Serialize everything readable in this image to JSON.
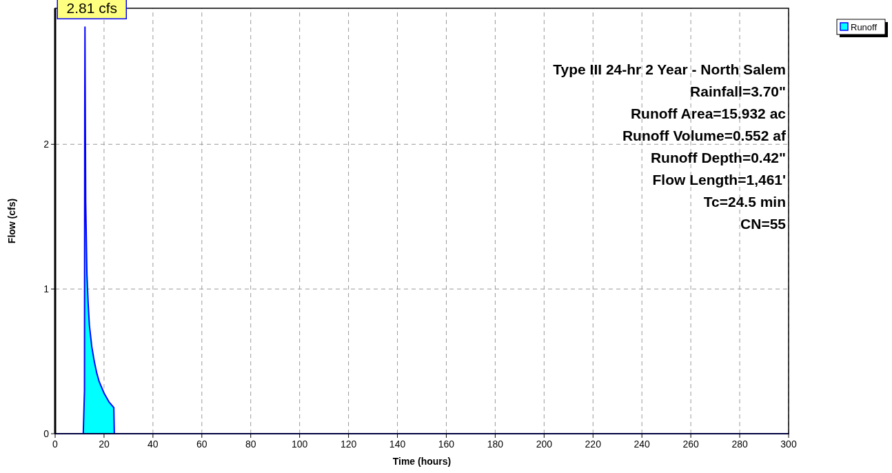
{
  "chart_data": {
    "type": "area",
    "xlabel": "Time  (hours)",
    "ylabel": "Flow  (cfs)",
    "xlim": [
      0,
      300
    ],
    "xticks": [
      0,
      20,
      40,
      60,
      80,
      100,
      120,
      140,
      160,
      180,
      200,
      220,
      240,
      260,
      280,
      300
    ],
    "ylim": [
      0,
      2.94
    ],
    "yticks": [
      0,
      1,
      2
    ],
    "grid": true,
    "legend": "top right",
    "series": [
      {
        "name": "Runoff",
        "color": "#00ffff",
        "x": [
          0,
          11.5,
          12,
          12.1,
          12.2,
          12.3,
          12.5,
          13,
          13.5,
          14,
          15,
          16,
          17,
          18,
          20,
          22,
          24,
          24.2,
          30,
          300
        ],
        "values": [
          0,
          0,
          0.3,
          2.2,
          2.81,
          2.4,
          1.6,
          1.1,
          0.9,
          0.75,
          0.6,
          0.5,
          0.42,
          0.36,
          0.28,
          0.22,
          0.18,
          0,
          0,
          0
        ]
      }
    ],
    "annotations": [
      {
        "text": "2.81 cfs",
        "x": 12.2,
        "y": 2.81
      },
      "Type III 24-hr 2 Year - North Salem",
      "Rainfall=3.70\"",
      "Runoff Area=15.932 ac",
      "Runoff Volume=0.552 af",
      "Runoff Depth=0.42\"",
      "Flow Length=1,461'",
      "Tc=24.5 min",
      "CN=55"
    ]
  }
}
